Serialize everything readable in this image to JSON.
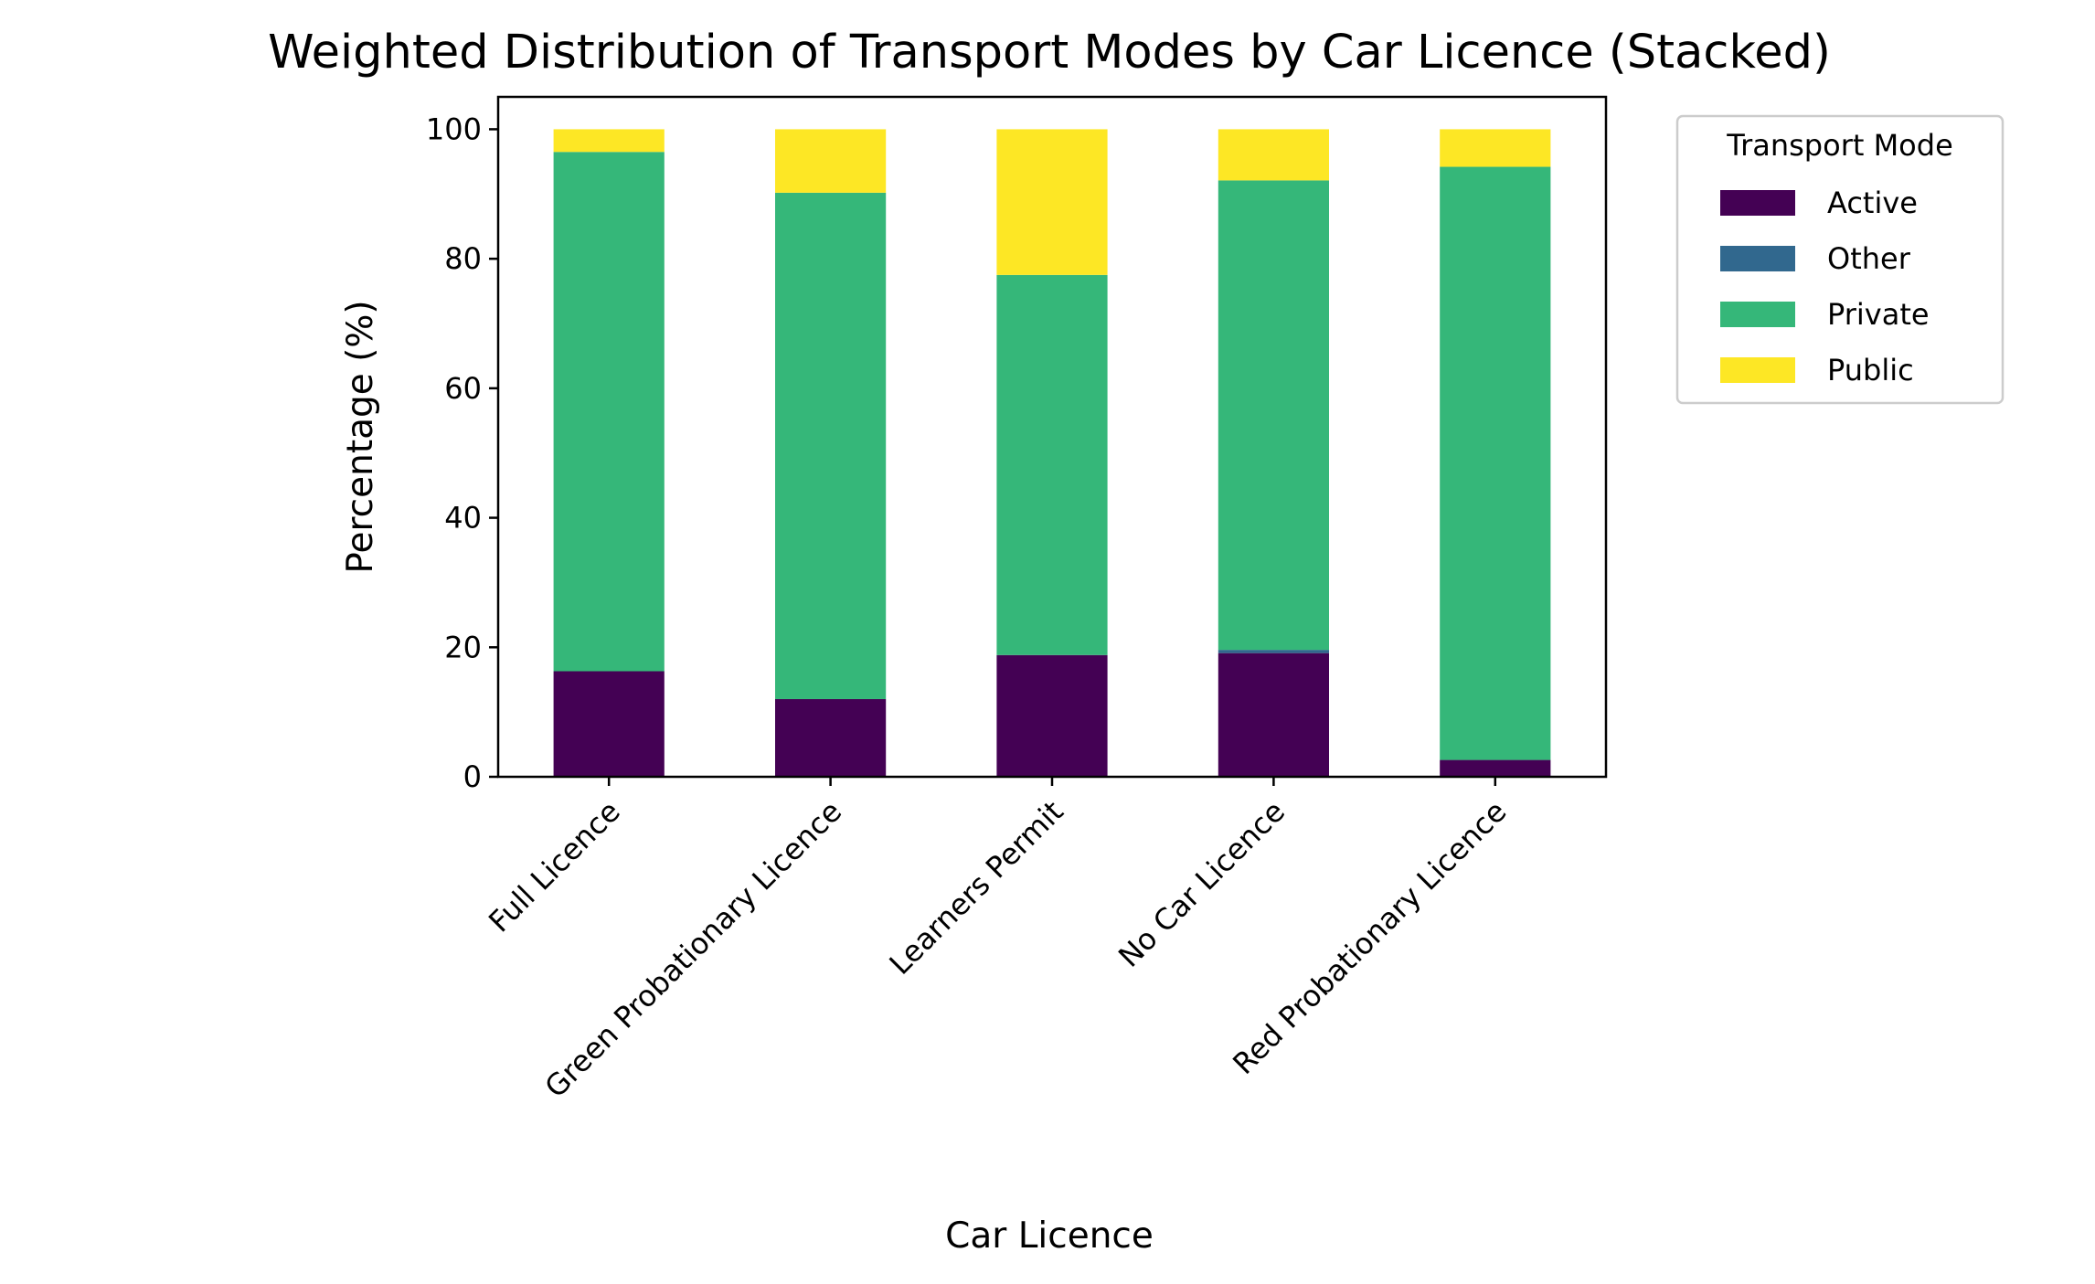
{
  "chart_data": {
    "type": "bar",
    "stacked": true,
    "title": "Weighted Distribution of Transport Modes by Car Licence (Stacked)",
    "xlabel": "Car Licence",
    "ylabel": "Percentage (%)",
    "ylim": [
      0,
      105
    ],
    "yticks": [
      0,
      20,
      40,
      60,
      80,
      100
    ],
    "categories": [
      "Full Licence",
      "Green Probationary Licence",
      "Learners Permit",
      "No Car Licence",
      "Red Probationary Licence"
    ],
    "series": [
      {
        "name": "Active",
        "color": "#440154",
        "values": [
          16.3,
          12.0,
          18.8,
          19.1,
          2.6
        ]
      },
      {
        "name": "Other",
        "color": "#31688e",
        "values": [
          0.0,
          0.0,
          0.0,
          0.5,
          0.0
        ]
      },
      {
        "name": "Private",
        "color": "#35b779",
        "values": [
          80.2,
          78.2,
          58.7,
          72.5,
          91.6
        ]
      },
      {
        "name": "Public",
        "color": "#fde725",
        "values": [
          3.5,
          9.8,
          22.5,
          7.9,
          5.8
        ]
      }
    ],
    "legend": {
      "title": "Transport Mode",
      "position": "outside-right"
    },
    "grid": false
  }
}
